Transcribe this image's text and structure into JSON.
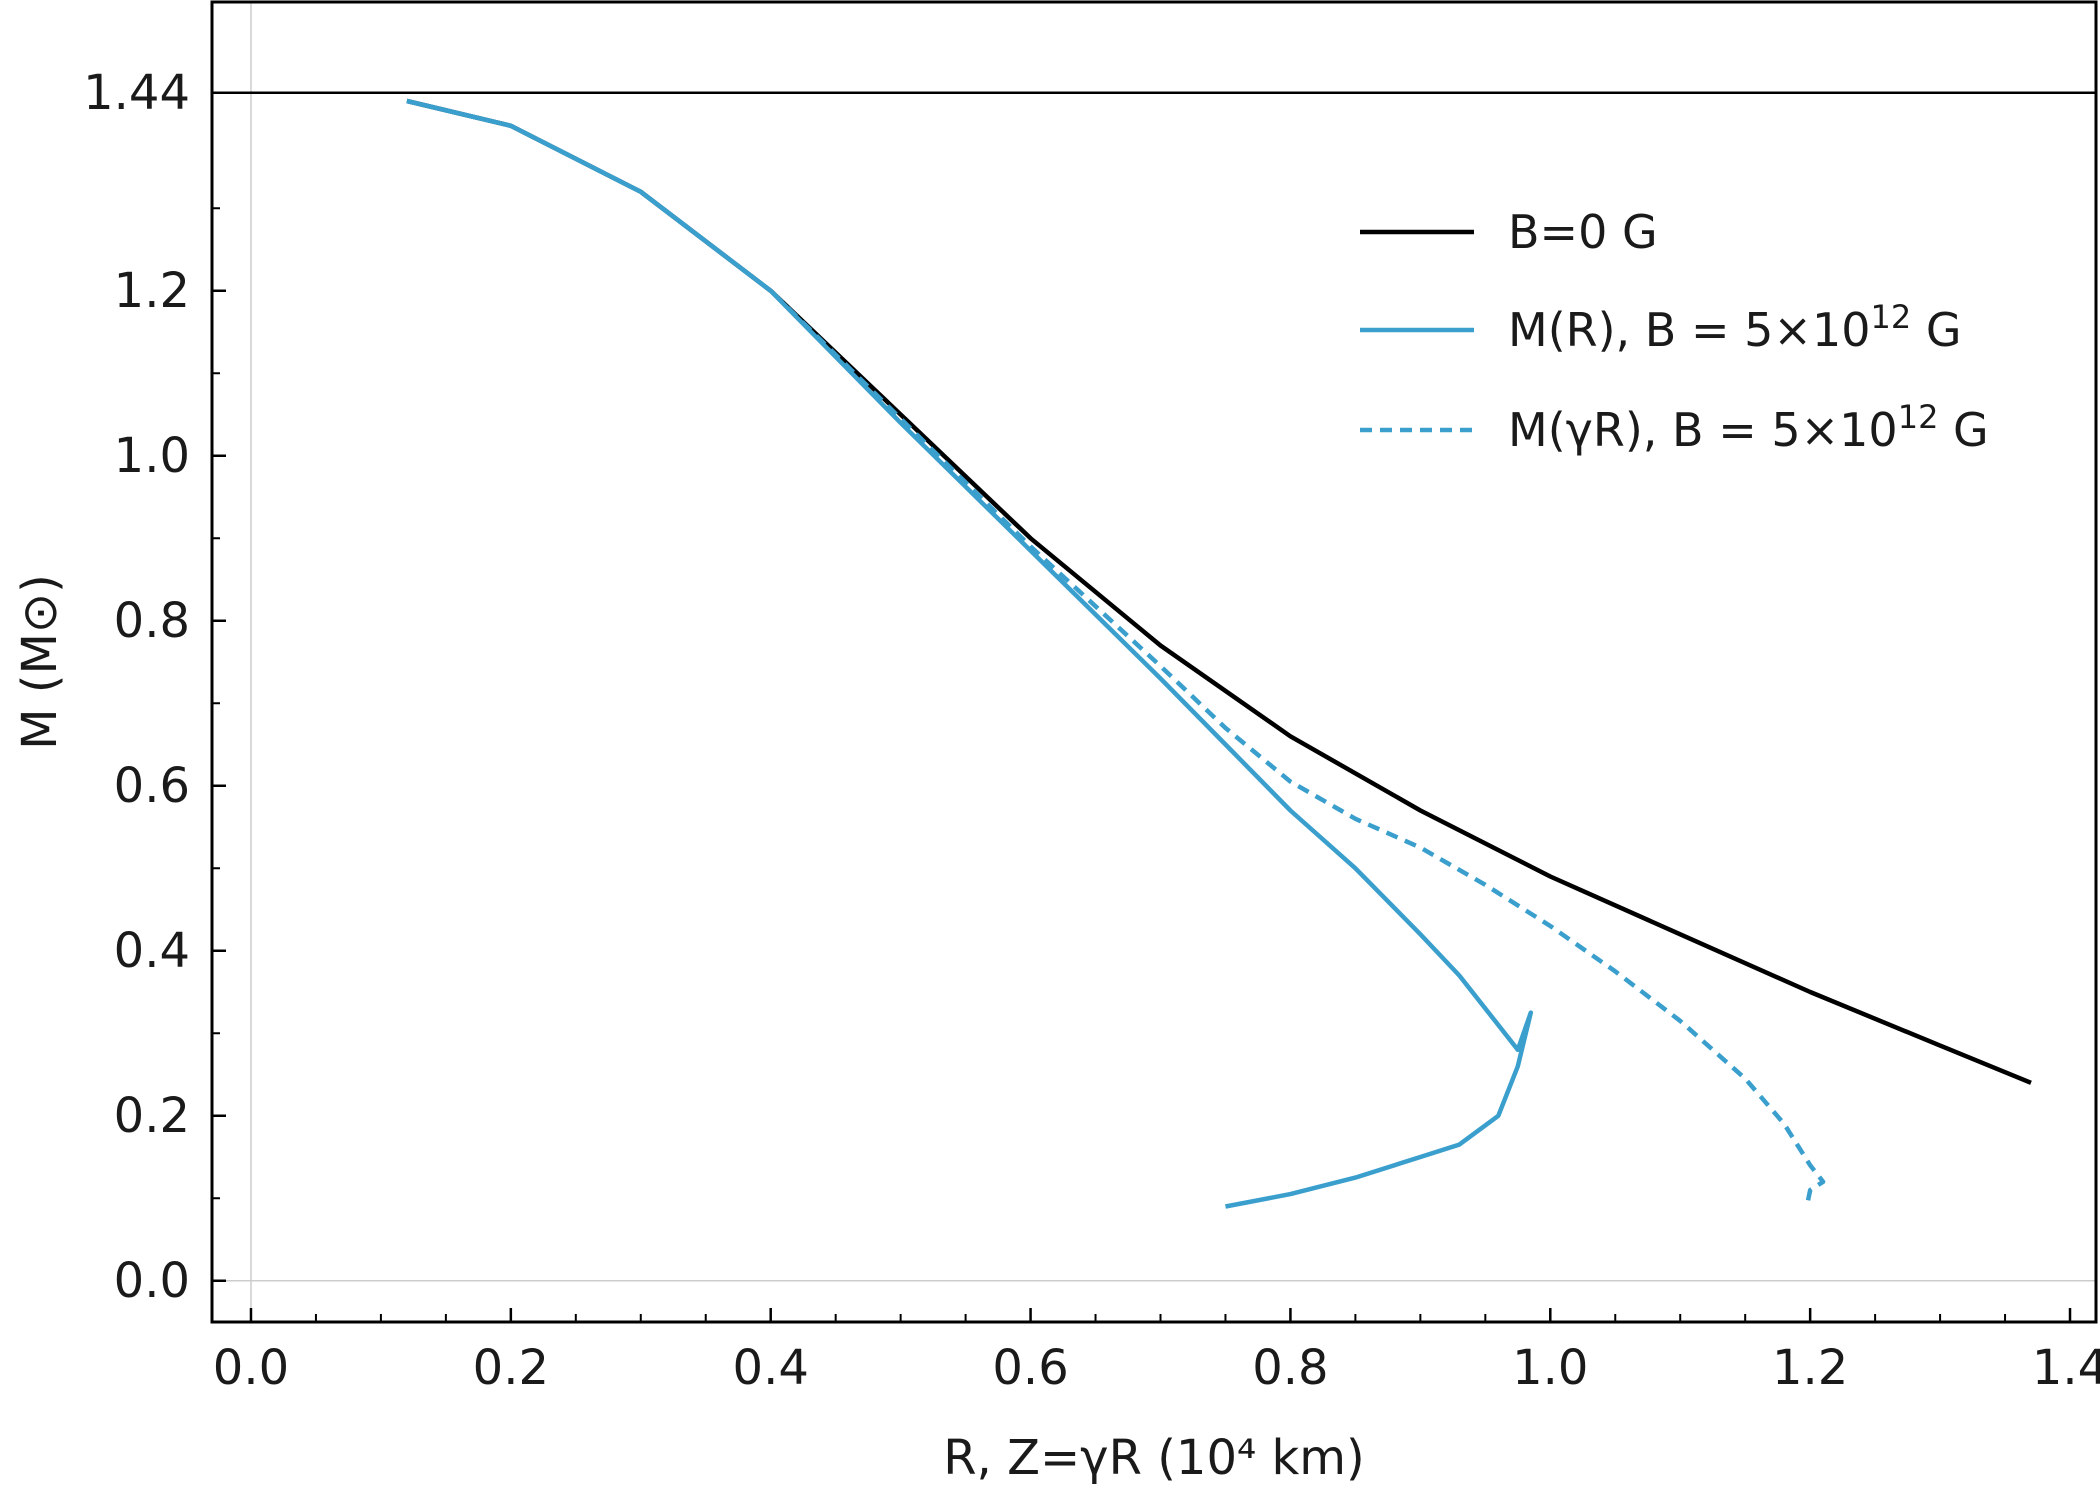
{
  "chart_data": {
    "type": "line",
    "title": "",
    "xlabel": "R, Z=γR (10⁴ km)",
    "ylabel": "M (M⊙)",
    "xlim": [
      -0.03,
      1.42
    ],
    "ylim": [
      -0.05,
      1.55
    ],
    "x_ticks": [
      0.0,
      0.2,
      0.4,
      0.6,
      0.8,
      1.0,
      1.2,
      1.4
    ],
    "x_tick_labels": [
      "0.0",
      "0.2",
      "0.4",
      "0.6",
      "0.8",
      "1.0",
      "1.2",
      "1.4"
    ],
    "y_ticks": [
      0.0,
      0.2,
      0.4,
      0.6,
      0.8,
      1.0,
      1.2,
      1.44
    ],
    "y_tick_labels": [
      "0.0",
      "0.2",
      "0.4",
      "0.6",
      "0.8",
      "1.0",
      "1.2",
      "1.44"
    ],
    "reference_line": {
      "y": 1.44,
      "color": "#000000"
    },
    "legend_placement": "upper-right",
    "legend": [
      {
        "series": "B0",
        "label": "B=0 G",
        "label_suffix": ""
      },
      {
        "series": "MR",
        "label": "M(R), B = 5×10¹² G",
        "label_prefix": "M(R), B = 5×10",
        "label_sup": "12",
        "label_suffix": " G"
      },
      {
        "series": "MgR",
        "label": "M(γR), B = 5×10¹² G",
        "label_prefix": "M(γR), B = 5×10",
        "label_sup": "12",
        "label_suffix": " G"
      }
    ],
    "series": [
      {
        "id": "B0",
        "name": "B=0 G",
        "color": "#000000",
        "dash": "solid",
        "x": [
          0.12,
          0.2,
          0.3,
          0.4,
          0.5,
          0.6,
          0.7,
          0.8,
          0.9,
          1.0,
          1.1,
          1.2,
          1.3,
          1.37
        ],
        "y": [
          1.43,
          1.4,
          1.32,
          1.2,
          1.05,
          0.9,
          0.77,
          0.66,
          0.57,
          0.49,
          0.42,
          0.35,
          0.285,
          0.24
        ]
      },
      {
        "id": "MR",
        "name": "M(R), B = 5×10¹² G",
        "color": "#3a9fcd",
        "dash": "solid",
        "x": [
          0.12,
          0.2,
          0.3,
          0.4,
          0.5,
          0.6,
          0.7,
          0.75,
          0.8,
          0.85,
          0.9,
          0.93,
          0.96,
          0.975,
          0.985,
          0.975,
          0.96,
          0.93,
          0.9,
          0.85,
          0.8,
          0.75
        ],
        "y": [
          1.43,
          1.4,
          1.32,
          1.2,
          1.04,
          0.885,
          0.73,
          0.65,
          0.57,
          0.5,
          0.42,
          0.37,
          0.31,
          0.28,
          0.325,
          0.26,
          0.2,
          0.165,
          0.15,
          0.125,
          0.105,
          0.09
        ]
      },
      {
        "id": "MgR",
        "name": "M(γR), B = 5×10¹² G",
        "color": "#3a9fcd",
        "dash": "dashed",
        "x": [
          0.12,
          0.2,
          0.3,
          0.4,
          0.5,
          0.6,
          0.7,
          0.75,
          0.8,
          0.85,
          0.9,
          0.95,
          1.0,
          1.05,
          1.1,
          1.15,
          1.18,
          1.2,
          1.21,
          1.2,
          1.198
        ],
        "y": [
          1.43,
          1.4,
          1.32,
          1.2,
          1.045,
          0.89,
          0.745,
          0.67,
          0.605,
          0.56,
          0.525,
          0.48,
          0.43,
          0.375,
          0.315,
          0.245,
          0.19,
          0.14,
          0.12,
          0.11,
          0.095
        ]
      }
    ]
  }
}
